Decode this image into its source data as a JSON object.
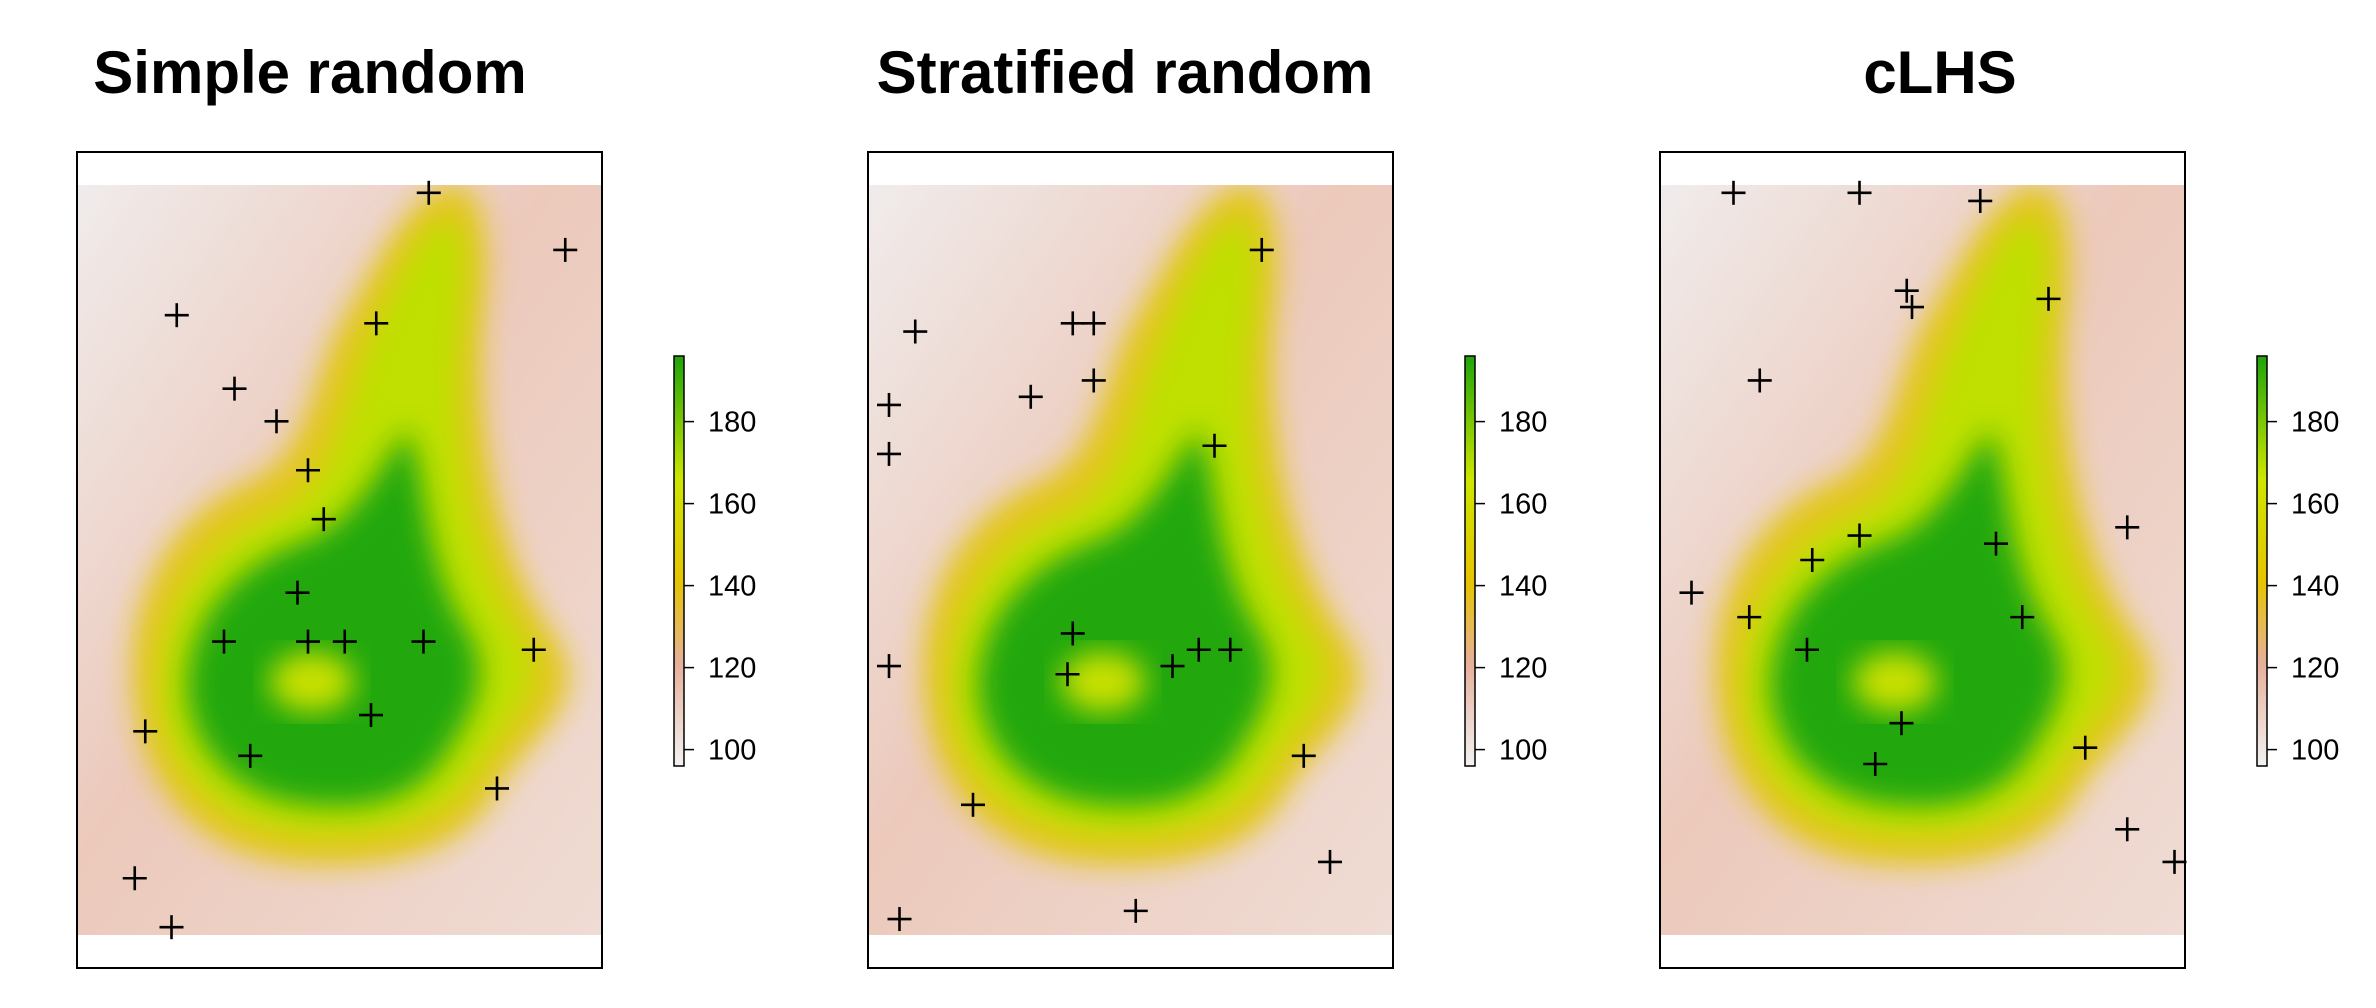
{
  "chart_data": [
    {
      "type": "heatmap",
      "title": "Simple random",
      "overlay": "sample points (+)",
      "xlim": [
        0,
        1
      ],
      "ylim": [
        0,
        1
      ],
      "colorbar": {
        "ticks": [
          100,
          120,
          140,
          160,
          180
        ],
        "range": [
          96,
          196
        ],
        "colors": [
          "#f2f2f2",
          "#e6b09a",
          "#e6c400",
          "#cde600",
          "#1ea40a"
        ]
      },
      "points": [
        {
          "x": 0.67,
          "y": 0.95
        },
        {
          "x": 0.93,
          "y": 0.88
        },
        {
          "x": 0.19,
          "y": 0.8
        },
        {
          "x": 0.57,
          "y": 0.79
        },
        {
          "x": 0.3,
          "y": 0.71
        },
        {
          "x": 0.38,
          "y": 0.67
        },
        {
          "x": 0.44,
          "y": 0.61
        },
        {
          "x": 0.47,
          "y": 0.55
        },
        {
          "x": 0.42,
          "y": 0.46
        },
        {
          "x": 0.28,
          "y": 0.4
        },
        {
          "x": 0.44,
          "y": 0.4
        },
        {
          "x": 0.51,
          "y": 0.4
        },
        {
          "x": 0.66,
          "y": 0.4
        },
        {
          "x": 0.87,
          "y": 0.39
        },
        {
          "x": 0.56,
          "y": 0.31
        },
        {
          "x": 0.13,
          "y": 0.29
        },
        {
          "x": 0.33,
          "y": 0.26
        },
        {
          "x": 0.8,
          "y": 0.22
        },
        {
          "x": 0.11,
          "y": 0.11
        },
        {
          "x": 0.18,
          "y": 0.05
        }
      ]
    },
    {
      "type": "heatmap",
      "title": "Stratified random",
      "overlay": "sample points (+)",
      "xlim": [
        0,
        1
      ],
      "ylim": [
        0,
        1
      ],
      "colorbar": {
        "ticks": [
          100,
          120,
          140,
          160,
          180
        ],
        "range": [
          96,
          196
        ],
        "colors": [
          "#f2f2f2",
          "#e6b09a",
          "#e6c400",
          "#cde600",
          "#1ea40a"
        ]
      },
      "points": [
        {
          "x": 0.75,
          "y": 0.88
        },
        {
          "x": 0.09,
          "y": 0.78
        },
        {
          "x": 0.39,
          "y": 0.79
        },
        {
          "x": 0.43,
          "y": 0.79
        },
        {
          "x": 0.31,
          "y": 0.7
        },
        {
          "x": 0.43,
          "y": 0.72
        },
        {
          "x": 0.04,
          "y": 0.69
        },
        {
          "x": 0.66,
          "y": 0.64
        },
        {
          "x": 0.04,
          "y": 0.63
        },
        {
          "x": 0.39,
          "y": 0.41
        },
        {
          "x": 0.38,
          "y": 0.36
        },
        {
          "x": 0.58,
          "y": 0.37
        },
        {
          "x": 0.63,
          "y": 0.39
        },
        {
          "x": 0.69,
          "y": 0.39
        },
        {
          "x": 0.04,
          "y": 0.37
        },
        {
          "x": 0.83,
          "y": 0.26
        },
        {
          "x": 0.2,
          "y": 0.2
        },
        {
          "x": 0.88,
          "y": 0.13
        },
        {
          "x": 0.51,
          "y": 0.07
        },
        {
          "x": 0.06,
          "y": 0.06
        }
      ]
    },
    {
      "type": "heatmap",
      "title": "cLHS",
      "overlay": "sample points (+)",
      "xlim": [
        0,
        1
      ],
      "ylim": [
        0,
        1
      ],
      "colorbar": {
        "ticks": [
          100,
          120,
          140,
          160,
          180
        ],
        "range": [
          96,
          196
        ],
        "colors": [
          "#f2f2f2",
          "#e6b09a",
          "#e6c400",
          "#cde600",
          "#1ea40a"
        ]
      },
      "points": [
        {
          "x": 0.14,
          "y": 0.95
        },
        {
          "x": 0.38,
          "y": 0.95
        },
        {
          "x": 0.61,
          "y": 0.94
        },
        {
          "x": 0.47,
          "y": 0.83
        },
        {
          "x": 0.48,
          "y": 0.81
        },
        {
          "x": 0.74,
          "y": 0.82
        },
        {
          "x": 0.19,
          "y": 0.72
        },
        {
          "x": 0.38,
          "y": 0.53
        },
        {
          "x": 0.06,
          "y": 0.46
        },
        {
          "x": 0.64,
          "y": 0.52
        },
        {
          "x": 0.29,
          "y": 0.5
        },
        {
          "x": 0.17,
          "y": 0.43
        },
        {
          "x": 0.69,
          "y": 0.43
        },
        {
          "x": 0.89,
          "y": 0.54
        },
        {
          "x": 0.28,
          "y": 0.39
        },
        {
          "x": 0.46,
          "y": 0.3
        },
        {
          "x": 0.41,
          "y": 0.25
        },
        {
          "x": 0.81,
          "y": 0.27
        },
        {
          "x": 0.89,
          "y": 0.17
        },
        {
          "x": 0.98,
          "y": 0.13
        }
      ]
    }
  ]
}
